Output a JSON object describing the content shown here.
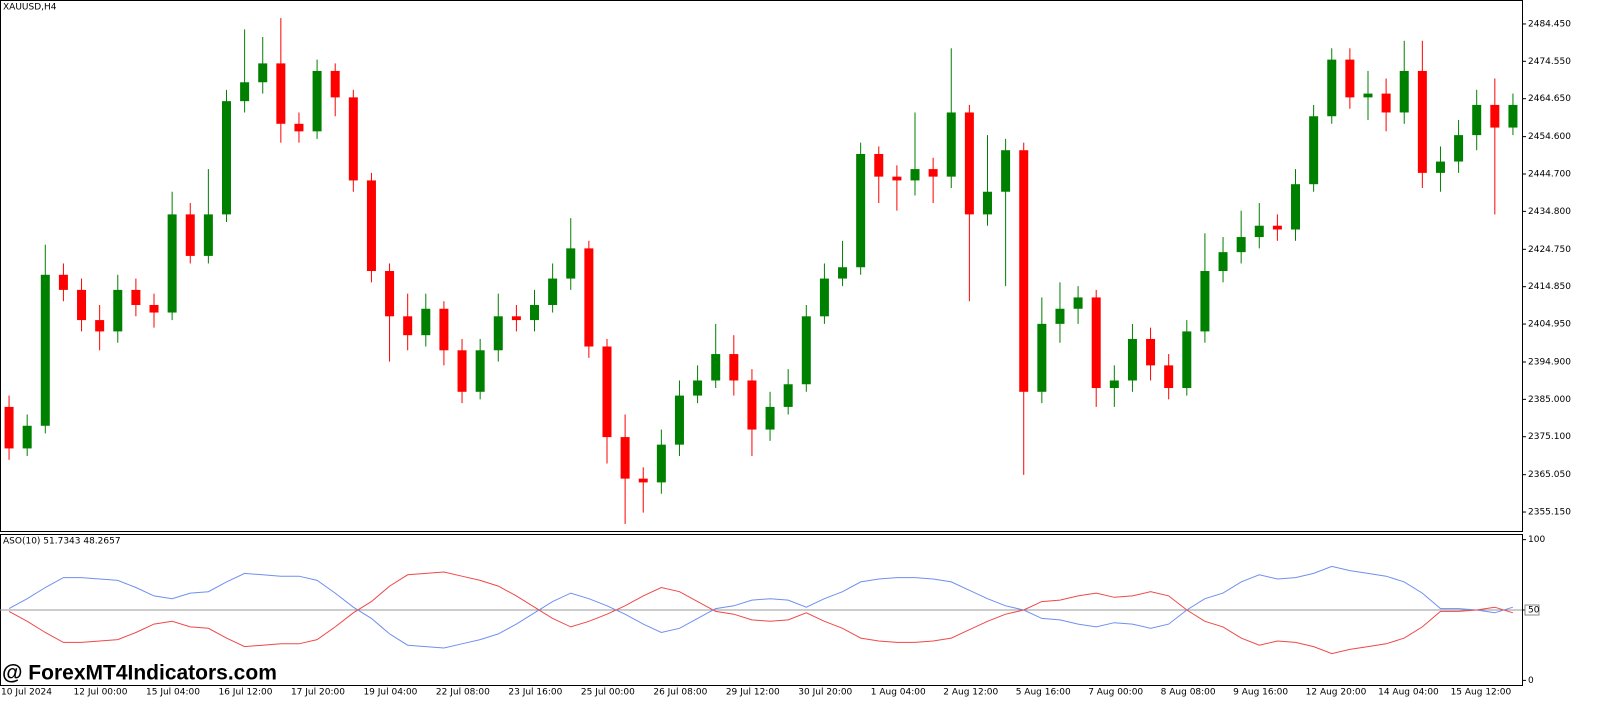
{
  "chart_data": [
    {
      "type": "candlestick",
      "title": "XAUUSD,H4",
      "categories": [
        "10 Jul 2024",
        null,
        null,
        null,
        "12 Jul 00:00",
        null,
        null,
        null,
        "15 Jul 04:00",
        null,
        null,
        null,
        "16 Jul 12:00",
        null,
        null,
        null,
        "17 Jul 20:00",
        null,
        null,
        null,
        "19 Jul 04:00",
        null,
        null,
        null,
        "22 Jul 08:00",
        null,
        null,
        null,
        "23 Jul 16:00",
        null,
        null,
        null,
        "25 Jul 00:00",
        null,
        null,
        null,
        "26 Jul 08:00",
        null,
        null,
        null,
        "29 Jul 12:00",
        null,
        null,
        null,
        "30 Jul 20:00",
        null,
        null,
        null,
        "1 Aug 04:00",
        null,
        null,
        null,
        "2 Aug 12:00",
        null,
        null,
        null,
        "5 Aug 16:00",
        null,
        null,
        null,
        "7 Aug 00:00",
        null,
        null,
        null,
        "8 Aug 08:00",
        null,
        null,
        null,
        "9 Aug 16:00",
        null,
        null,
        null,
        "12 Aug 20:00",
        null,
        null,
        null,
        "14 Aug 04:00",
        null,
        null,
        null,
        "15 Aug 12:00",
        null,
        null,
        null
      ],
      "open": [
        2383,
        2372,
        2378,
        2418,
        2414,
        2406,
        2403,
        2414,
        2410,
        2408,
        2434,
        2423,
        2434,
        2464,
        2469,
        2474,
        2458,
        2456,
        2472,
        2465,
        2443,
        2419,
        2407,
        2402,
        2409,
        2398,
        2387,
        2398,
        2407,
        2406,
        2410,
        2417,
        2425,
        2399,
        2375,
        2364,
        2363,
        2373,
        2386,
        2390,
        2397,
        2390,
        2377,
        2383,
        2389,
        2407,
        2417,
        2420,
        2450,
        2444,
        2443,
        2446,
        2444,
        2461,
        2434,
        2440,
        2451,
        2387,
        2405,
        2409,
        2412,
        2388,
        2390,
        2401,
        2394,
        2388,
        2403,
        2419,
        2424,
        2428,
        2431,
        2430,
        2442,
        2460,
        2475,
        2465,
        2466,
        2461,
        2472,
        2445,
        2448,
        2455,
        2463,
        2457
      ],
      "high": [
        2386,
        2381,
        2426,
        2421,
        2417,
        2410,
        2418,
        2417,
        2413,
        2440,
        2437,
        2446,
        2467,
        2483,
        2481,
        2486,
        2461,
        2475,
        2474,
        2467,
        2445,
        2421,
        2413,
        2413,
        2411,
        2401,
        2401,
        2413,
        2410,
        2414,
        2421,
        2433,
        2427,
        2401,
        2381,
        2367,
        2377,
        2390,
        2394,
        2405,
        2402,
        2393,
        2387,
        2393,
        2410,
        2421,
        2427,
        2453,
        2452,
        2447,
        2461,
        2449,
        2478,
        2463,
        2455,
        2454,
        2453,
        2412,
        2416,
        2415,
        2414,
        2394,
        2405,
        2404,
        2397,
        2406,
        2429,
        2428,
        2435,
        2437,
        2434,
        2446,
        2463,
        2478,
        2478,
        2472,
        2470,
        2480,
        2480,
        2452,
        2459,
        2467,
        2470,
        2466
      ],
      "low": [
        2369,
        2370,
        2376,
        2411,
        2403,
        2398,
        2400,
        2407,
        2404,
        2406,
        2421,
        2421,
        2432,
        2461,
        2466,
        2453,
        2453,
        2454,
        2460,
        2440,
        2416,
        2395,
        2398,
        2399,
        2394,
        2384,
        2385,
        2395,
        2403,
        2403,
        2408,
        2414,
        2396,
        2368,
        2352,
        2355,
        2360,
        2370,
        2384,
        2388,
        2386,
        2370,
        2374,
        2381,
        2387,
        2405,
        2415,
        2418,
        2437,
        2435,
        2439,
        2437,
        2441,
        2411,
        2431,
        2415,
        2365,
        2384,
        2400,
        2405,
        2383,
        2383,
        2387,
        2390,
        2385,
        2386,
        2400,
        2416,
        2421,
        2425,
        2427,
        2427,
        2440,
        2458,
        2462,
        2459,
        2456,
        2458,
        2441,
        2440,
        2445,
        2451,
        2434,
        2455
      ],
      "close": [
        2372,
        2378,
        2418,
        2414,
        2406,
        2403,
        2414,
        2410,
        2408,
        2434,
        2423,
        2434,
        2464,
        2469,
        2474,
        2458,
        2456,
        2472,
        2465,
        2443,
        2419,
        2407,
        2402,
        2409,
        2398,
        2387,
        2398,
        2407,
        2406,
        2410,
        2417,
        2425,
        2399,
        2375,
        2364,
        2363,
        2373,
        2386,
        2390,
        2397,
        2390,
        2377,
        2383,
        2389,
        2407,
        2417,
        2420,
        2450,
        2444,
        2443,
        2446,
        2444,
        2461,
        2434,
        2440,
        2451,
        2387,
        2405,
        2409,
        2412,
        2388,
        2390,
        2401,
        2394,
        2388,
        2403,
        2419,
        2424,
        2428,
        2431,
        2430,
        2442,
        2460,
        2475,
        2465,
        2466,
        2461,
        2472,
        2445,
        2448,
        2455,
        2463,
        2457,
        2463
      ],
      "up_color": "#008000",
      "down_color": "#ff0000",
      "ylim": [
        2349.86,
        2490.53
      ],
      "yticks": [
        {
          "value": 2355.15,
          "label": "2355.150"
        },
        {
          "value": 2365.05,
          "label": "2365.050"
        },
        {
          "value": 2375.1,
          "label": "2375.100"
        },
        {
          "value": 2385,
          "label": "2385.000"
        },
        {
          "value": 2394.9,
          "label": "2394.900"
        },
        {
          "value": 2404.95,
          "label": "2404.950"
        },
        {
          "value": 2414.85,
          "label": "2414.850"
        },
        {
          "value": 2424.75,
          "label": "2424.750"
        },
        {
          "value": 2434.8,
          "label": "2434.800"
        },
        {
          "value": 2444.7,
          "label": "2444.700"
        },
        {
          "value": 2454.6,
          "label": "2454.600"
        },
        {
          "value": 2464.65,
          "label": "2464.650"
        },
        {
          "value": 2474.55,
          "label": "2474.550"
        },
        {
          "value": 2484.45,
          "label": "2484.450"
        }
      ]
    },
    {
      "type": "line",
      "title": "ASO(10) 51.7343 48.2657",
      "series": [
        {
          "color": "#6f8ff0",
          "values": [
            51,
            58,
            66,
            73,
            73,
            72,
            71,
            66,
            60,
            58,
            62,
            63,
            70,
            76,
            75,
            74,
            74,
            71,
            62,
            52,
            44,
            33,
            25,
            24,
            23,
            26,
            29,
            33,
            40,
            48,
            56,
            62,
            58,
            53,
            47,
            40,
            34,
            37,
            44,
            51,
            53,
            57,
            58,
            57,
            52,
            58,
            63,
            70,
            72,
            73,
            73,
            72,
            70,
            64,
            58,
            53,
            50,
            44,
            43,
            40,
            38,
            41,
            40,
            37,
            40,
            50,
            58,
            62,
            70,
            75,
            72,
            73,
            76,
            81,
            78,
            76,
            74,
            70,
            62,
            51,
            51,
            50,
            48,
            52
          ]
        },
        {
          "color": "#f04848",
          "values": [
            49,
            42,
            34,
            27,
            27,
            28,
            29,
            34,
            40,
            42,
            38,
            37,
            30,
            24,
            25,
            26,
            26,
            29,
            38,
            48,
            56,
            67,
            75,
            76,
            77,
            74,
            71,
            67,
            60,
            52,
            44,
            38,
            42,
            47,
            53,
            60,
            66,
            63,
            56,
            49,
            47,
            43,
            42,
            43,
            48,
            42,
            37,
            30,
            28,
            27,
            27,
            28,
            30,
            36,
            42,
            47,
            50,
            56,
            57,
            60,
            62,
            59,
            60,
            63,
            60,
            50,
            42,
            38,
            30,
            25,
            28,
            27,
            24,
            19,
            22,
            24,
            26,
            30,
            38,
            49,
            49,
            50,
            52,
            48
          ]
        }
      ],
      "level": 50,
      "ylim": [
        -4,
        104
      ],
      "yticks": [
        0,
        50,
        100
      ]
    }
  ],
  "watermark": "@ ForexMT4Indicators.com"
}
